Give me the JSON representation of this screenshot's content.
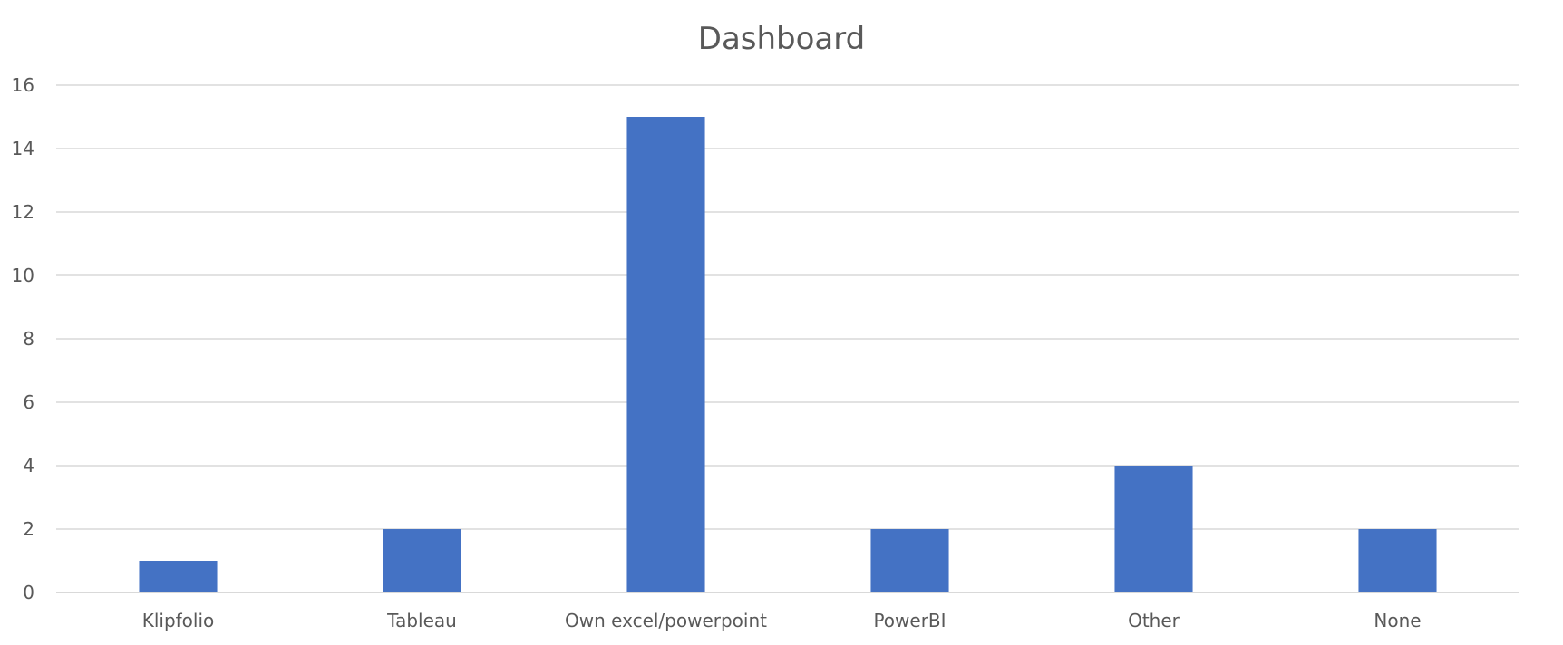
{
  "chart_data": {
    "type": "bar",
    "title": "Dashboard",
    "xlabel": "",
    "ylabel": "",
    "categories": [
      "Klipfolio",
      "Tableau",
      "Own excel/powerpoint",
      "PowerBI",
      "Other",
      "None"
    ],
    "values": [
      1,
      2,
      15,
      2,
      4,
      2
    ],
    "ylim": [
      0,
      16
    ],
    "yticks": [
      "0",
      "2",
      "4",
      "6",
      "8",
      "10",
      "12",
      "14",
      "16"
    ],
    "grid": true,
    "legend": "none",
    "colors": {
      "bar": "#4472c4",
      "grid": "#d9d9d9",
      "text": "#595959"
    }
  }
}
